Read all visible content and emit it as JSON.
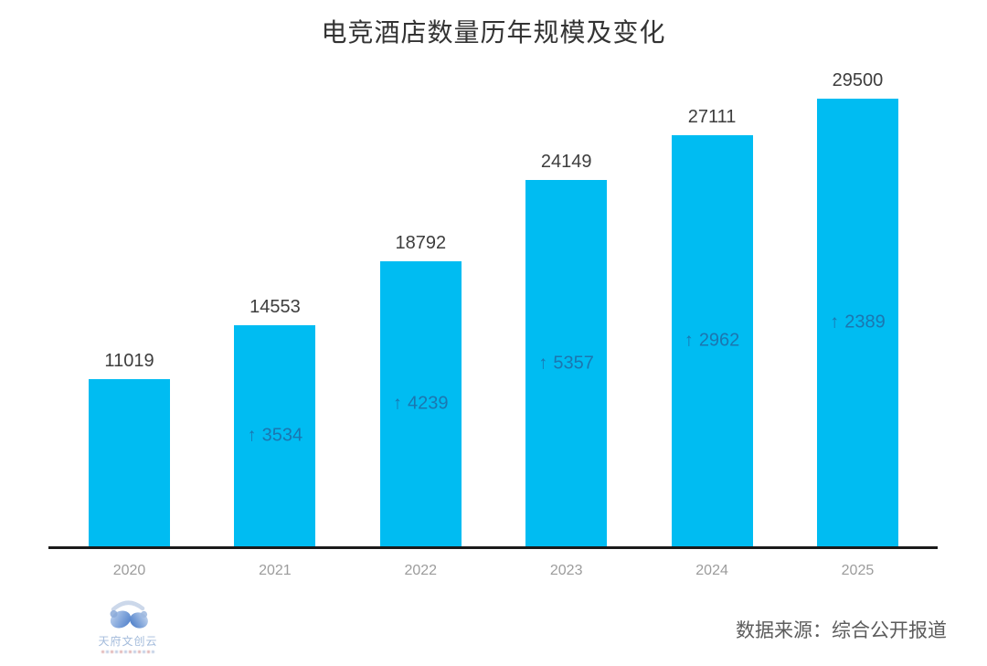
{
  "title": "电竞酒店数量历年规模及变化",
  "chart_data": {
    "type": "bar",
    "title": "电竞酒店数量历年规模及变化",
    "categories": [
      "2020",
      "2021",
      "2022",
      "2023",
      "2024",
      "2025"
    ],
    "values": [
      11019,
      14553,
      18792,
      24149,
      27111,
      29500
    ],
    "changes": [
      null,
      3534,
      4239,
      5357,
      2962,
      2389
    ],
    "change_prefix": "↑",
    "xlabel": "",
    "ylabel": "",
    "ylim": [
      0,
      29500
    ],
    "grid": false,
    "legend": "none",
    "annotations": "value above each bar; year-over-year increase with up arrow centered inside each bar"
  },
  "footer": {
    "logo_text": "天府文创云",
    "source": "数据来源：综合公开报道"
  },
  "colors": {
    "bar": "#00BCF2",
    "change_label": "#1B76B0",
    "value_label": "#3D3D3D",
    "title": "#333333",
    "year_label": "#9C9C9C",
    "axis": "#1A1A1A",
    "source": "#5C5C5C",
    "logo_text": "#A3BBDB"
  }
}
